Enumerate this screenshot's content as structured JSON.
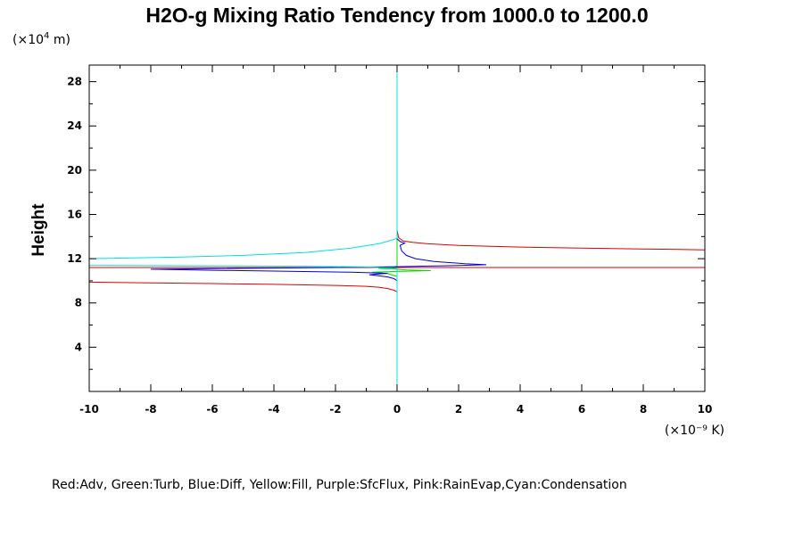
{
  "chart_data": {
    "type": "line",
    "title": "H2O-g Mixing Ratio Tendency from 1000.0 to 1200.0",
    "xlabel": "",
    "ylabel": "Height",
    "x_unit": "(×10⁻⁹ K)",
    "y_unit_prefix": "(×10",
    "y_unit_exp": "4",
    "y_unit_suffix": " m)",
    "xlim": [
      -10,
      10
    ],
    "ylim": [
      0,
      29.5
    ],
    "x_ticks": [
      -10,
      -8,
      -6,
      -4,
      -2,
      0,
      2,
      4,
      6,
      8,
      10
    ],
    "y_ticks": [
      4,
      8,
      12,
      16,
      20,
      24,
      28
    ],
    "grid": false,
    "legend_text": "Red:Adv, Green:Turb, Blue:Diff, Yellow:Fill, Purple:SfcFlux, Pink:RainEvap,Cyan:Condensation",
    "series": [
      {
        "name": "Adv",
        "color": "#dd0000",
        "points": [
          [
            0,
            0
          ],
          [
            0,
            8.4
          ],
          [
            0,
            9.0
          ],
          [
            -0.1,
            9.15
          ],
          [
            -0.3,
            9.3
          ],
          [
            -0.6,
            9.42
          ],
          [
            -1,
            9.5
          ],
          [
            -2,
            9.58
          ],
          [
            -4,
            9.68
          ],
          [
            -6,
            9.75
          ],
          [
            -8,
            9.82
          ],
          [
            -10,
            9.88
          ],
          [
            -10,
            11.2
          ],
          [
            -4,
            11.2
          ],
          [
            0,
            11.2
          ],
          [
            4,
            11.2
          ],
          [
            10,
            11.2
          ],
          [
            10,
            12.8
          ],
          [
            8,
            12.88
          ],
          [
            6,
            12.95
          ],
          [
            4,
            13.05
          ],
          [
            2,
            13.2
          ],
          [
            1,
            13.35
          ],
          [
            0.5,
            13.48
          ],
          [
            0.2,
            13.6
          ],
          [
            0.05,
            13.9
          ],
          [
            0,
            14.6
          ],
          [
            0,
            15.0
          ],
          [
            0,
            29.5
          ]
        ]
      },
      {
        "name": "Turb",
        "color": "#00dd00",
        "points": [
          [
            0,
            0
          ],
          [
            0,
            10.4
          ],
          [
            -0.3,
            10.65
          ],
          [
            -0.8,
            10.78
          ],
          [
            0,
            10.85
          ],
          [
            0.5,
            10.88
          ],
          [
            1.1,
            10.92
          ],
          [
            0.3,
            10.98
          ],
          [
            0,
            11.05
          ],
          [
            -0.6,
            11.12
          ],
          [
            -0.2,
            11.2
          ],
          [
            0,
            11.3
          ],
          [
            0,
            29.5
          ]
        ]
      },
      {
        "name": "Diff",
        "color": "#0000dd",
        "points": [
          [
            0,
            0
          ],
          [
            0,
            9.7
          ],
          [
            0,
            10.0
          ],
          [
            -0.1,
            10.2
          ],
          [
            -0.3,
            10.35
          ],
          [
            -0.6,
            10.45
          ],
          [
            -0.9,
            10.55
          ],
          [
            -0.3,
            10.68
          ],
          [
            -1.5,
            10.78
          ],
          [
            -4,
            10.88
          ],
          [
            -6,
            10.95
          ],
          [
            -8,
            11.05
          ],
          [
            -6,
            11.1
          ],
          [
            -2,
            11.2
          ],
          [
            0,
            11.28
          ],
          [
            1,
            11.33
          ],
          [
            2,
            11.38
          ],
          [
            2.9,
            11.45
          ],
          [
            2.2,
            11.55
          ],
          [
            1.2,
            11.75
          ],
          [
            0.6,
            12.0
          ],
          [
            0.3,
            12.3
          ],
          [
            0.15,
            12.7
          ],
          [
            0.1,
            13.2
          ],
          [
            0.25,
            13.4
          ],
          [
            0.1,
            13.55
          ],
          [
            0,
            13.8
          ],
          [
            0,
            14.2
          ],
          [
            0,
            29.5
          ]
        ]
      },
      {
        "name": "Condensation",
        "color": "#00e0e0",
        "points": [
          [
            0,
            0
          ],
          [
            0,
            11.1
          ],
          [
            -0.4,
            11.18
          ],
          [
            -1,
            11.25
          ],
          [
            -3,
            11.32
          ],
          [
            -6,
            11.36
          ],
          [
            -10,
            11.4
          ],
          [
            -10,
            12.0
          ],
          [
            -7,
            12.15
          ],
          [
            -5,
            12.3
          ],
          [
            -3,
            12.55
          ],
          [
            -1.5,
            12.95
          ],
          [
            -0.6,
            13.35
          ],
          [
            -0.2,
            13.65
          ],
          [
            0,
            13.85
          ],
          [
            0,
            29.5
          ]
        ]
      }
    ]
  }
}
